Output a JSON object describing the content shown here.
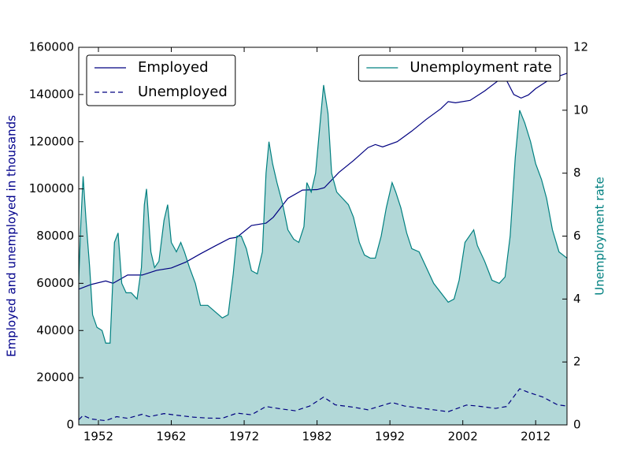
{
  "chart_data": {
    "type": "line",
    "y_label": "Employed and unemployed in thousands",
    "y2_label": "Unemployment rate",
    "y_label_color": "#00008b",
    "y2_label_color": "#008080",
    "xlim": [
      1949.3,
      2016.3
    ],
    "xticks": [
      1952,
      1962,
      1972,
      1982,
      1992,
      2002,
      2012
    ],
    "ylim": [
      0,
      160000
    ],
    "yticks": [
      0,
      20000,
      40000,
      60000,
      80000,
      100000,
      120000,
      140000,
      160000
    ],
    "y2lim": [
      0,
      12
    ],
    "y2ticks": [
      0,
      2,
      4,
      6,
      8,
      10,
      12
    ],
    "legend_loc": "upper left",
    "legend2_loc": "upper right",
    "series": [
      {
        "name": "Employed",
        "color": "#000080",
        "style": "solid",
        "x": [
          1949.3,
          1951,
          1953,
          1954,
          1956,
          1958,
          1960,
          1962,
          1964,
          1966,
          1968,
          1970,
          1971,
          1973,
          1975,
          1976,
          1978,
          1980,
          1982,
          1983,
          1985,
          1987,
          1989,
          1990,
          1991,
          1993,
          1995,
          1997,
          1999,
          2000,
          2001,
          2003,
          2005,
          2007,
          2008,
          2009,
          2010,
          2011,
          2012,
          2014,
          2016.3
        ],
        "values": [
          57500,
          59500,
          61000,
          60000,
          63500,
          63500,
          65500,
          66500,
          69000,
          72500,
          75800,
          79000,
          79500,
          84500,
          85500,
          88000,
          96000,
          99500,
          99700,
          100500,
          107000,
          112000,
          117500,
          118800,
          117800,
          120000,
          124500,
          129500,
          134000,
          137000,
          136500,
          137500,
          141500,
          146200,
          146000,
          140000,
          138500,
          139800,
          142500,
          146500,
          149000
        ]
      },
      {
        "name": "Unemployed",
        "color": "#000080",
        "style": "dashed",
        "x": [
          1949.3,
          1949.9,
          1951,
          1953,
          1954.5,
          1956,
          1958,
          1959,
          1961,
          1963,
          1965,
          1967,
          1969,
          1971,
          1973,
          1975,
          1977,
          1979,
          1981,
          1982.9,
          1984.5,
          1987,
          1989,
          1992.3,
          1994,
          1997,
          2000,
          2002.5,
          2004,
          2006.5,
          2008,
          2009.8,
          2011,
          2013,
          2015,
          2016.3
        ],
        "values": [
          2200,
          4000,
          2500,
          1800,
          3500,
          2800,
          4500,
          3500,
          4800,
          4000,
          3300,
          2900,
          2800,
          5000,
          4300,
          7800,
          6800,
          6000,
          8000,
          11800,
          8500,
          7500,
          6400,
          9500,
          8000,
          6800,
          5600,
          8400,
          8000,
          7000,
          7800,
          15300,
          13800,
          11800,
          8500,
          8000
        ]
      },
      {
        "name": "Unemployment rate",
        "color": "#008080",
        "fill": "#b2d8d8",
        "style": "solid",
        "axis": "y2",
        "x": [
          1949.3,
          1949.6,
          1949.9,
          1950.3,
          1950.8,
          1951.2,
          1951.8,
          1952.5,
          1953.0,
          1953.6,
          1954.2,
          1954.7,
          1955.2,
          1955.8,
          1956.5,
          1957.3,
          1957.9,
          1958.3,
          1958.6,
          1959.2,
          1959.7,
          1960.3,
          1961.0,
          1961.5,
          1962.0,
          1962.7,
          1963.3,
          1963.8,
          1964.5,
          1965.3,
          1966.0,
          1967.0,
          1968.0,
          1969.0,
          1969.8,
          1970.5,
          1971.0,
          1971.6,
          1972.3,
          1973.0,
          1973.8,
          1974.5,
          1975.0,
          1975.4,
          1975.9,
          1976.5,
          1977.3,
          1978.0,
          1978.8,
          1979.5,
          1980.2,
          1980.6,
          1981.2,
          1981.8,
          1982.5,
          1982.9,
          1983.5,
          1984.0,
          1984.7,
          1985.5,
          1986.3,
          1987.0,
          1987.8,
          1988.5,
          1989.3,
          1990.0,
          1990.8,
          1991.5,
          1992.3,
          1992.8,
          1993.5,
          1994.3,
          1995.0,
          1996.0,
          1997.0,
          1998.0,
          1999.0,
          2000.0,
          2000.8,
          2001.5,
          2002.3,
          2003.5,
          2004.0,
          2005.0,
          2006.0,
          2007.0,
          2007.8,
          2008.5,
          2009.2,
          2009.8,
          2010.5,
          2011.3,
          2012.0,
          2012.8,
          2013.5,
          2014.3,
          2015.2,
          2016.3
        ],
        "values": [
          4.6,
          6.5,
          7.9,
          6.5,
          5.0,
          3.5,
          3.1,
          3.0,
          2.6,
          2.6,
          5.8,
          6.1,
          4.5,
          4.2,
          4.2,
          4.0,
          5.0,
          7.0,
          7.5,
          5.5,
          5.0,
          5.2,
          6.5,
          7.0,
          5.8,
          5.5,
          5.8,
          5.5,
          5.0,
          4.5,
          3.8,
          3.8,
          3.6,
          3.4,
          3.5,
          4.8,
          6.0,
          6.0,
          5.6,
          4.9,
          4.8,
          5.5,
          8.0,
          9.0,
          8.3,
          7.7,
          7.0,
          6.2,
          5.9,
          5.8,
          6.3,
          7.7,
          7.4,
          8.0,
          9.8,
          10.8,
          9.9,
          8.0,
          7.4,
          7.2,
          7.0,
          6.6,
          5.8,
          5.4,
          5.3,
          5.3,
          6.0,
          6.9,
          7.7,
          7.4,
          6.9,
          6.1,
          5.6,
          5.5,
          5.0,
          4.5,
          4.2,
          3.9,
          4.0,
          4.6,
          5.8,
          6.2,
          5.7,
          5.2,
          4.6,
          4.5,
          4.7,
          6.0,
          8.5,
          10.0,
          9.6,
          9.0,
          8.3,
          7.8,
          7.2,
          6.2,
          5.5,
          5.3
        ]
      }
    ]
  }
}
